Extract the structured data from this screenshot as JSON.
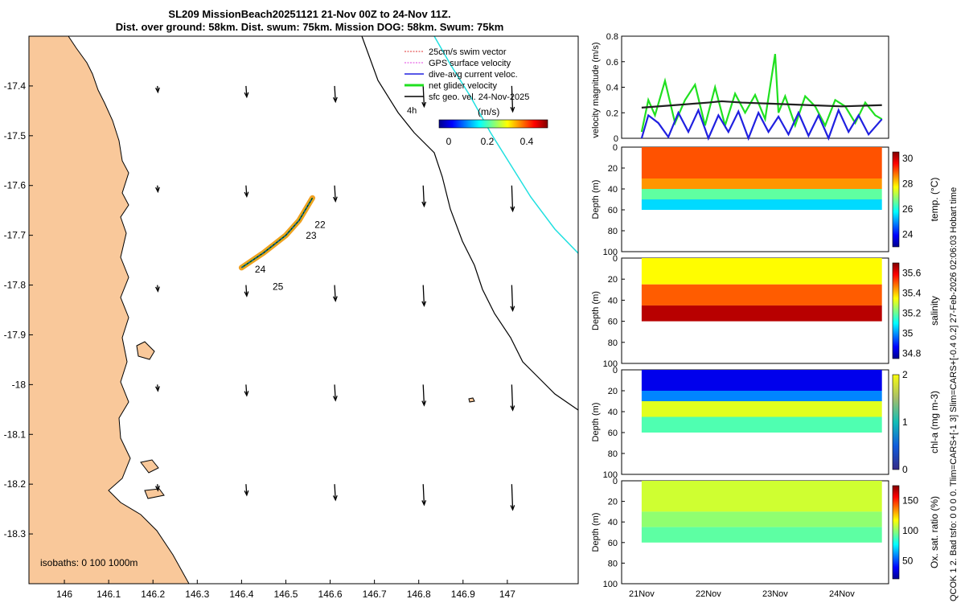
{
  "title": {
    "line1": "SL209 MissionBeach20251121 21-Nov 00Z to 24-Nov 11Z.",
    "line2": "Dist. over ground: 58km. Dist. swum: 75km. Mission DOG: 58km. Swum: 75km"
  },
  "side_note_right": "QCOK 1  2. Bad tsfo: 0  0  0  0. Tlim=CARS+[-1 3] Slim=CARS+[-0.4 0.2] 27-Feb-2026 02:06:03 Hobart time",
  "colors": {
    "land": "#f9c89a",
    "track": "#000000",
    "swim": "#e03030",
    "gps": "#e040e0",
    "current": "#2020e0",
    "glider": "#20e020",
    "contour": "#20e0e0"
  },
  "map": {
    "type": "map",
    "xlim": [
      145.92,
      147.16
    ],
    "ylim": [
      -18.4,
      -17.3
    ],
    "xticks": [
      "146",
      "146.1",
      "146.2",
      "146.3",
      "146.4",
      "146.5",
      "146.6",
      "146.7",
      "146.8",
      "146.9",
      "147"
    ],
    "yticks": [
      "-17.4",
      "-17.5",
      "-17.6",
      "-17.7",
      "-17.8",
      "-17.9",
      "-18",
      "-18.1",
      "-18.2",
      "-18.3"
    ],
    "isobaths_label": "isobaths: 0   100  1000m",
    "legend": [
      "25cm/s swim vector",
      "GPS surface velocity",
      "dive-avg current veloc.",
      "net glider velocity",
      "sfc geo. vel. 24-Nov-2025"
    ],
    "colorbar": {
      "label": "(m/s)",
      "ticks": [
        "0",
        "0.2",
        "0.4"
      ],
      "range": [
        0,
        0.5
      ]
    },
    "timestep_label": "4h",
    "day_labels": [
      {
        "text": "22",
        "lon": 146.565,
        "lat": -17.685
      },
      {
        "text": "23",
        "lon": 146.545,
        "lat": -17.707
      },
      {
        "text": "24",
        "lon": 146.43,
        "lat": -17.775
      },
      {
        "text": "25",
        "lon": 146.47,
        "lat": -17.81
      }
    ],
    "vectors_grid": {
      "lon": [
        146.21,
        146.41,
        146.61,
        146.81,
        147.01
      ],
      "lat": [
        -17.4,
        -17.6,
        -17.8,
        -18.0,
        -18.2
      ]
    }
  },
  "chart_data": [
    {
      "type": "line",
      "name": "velocity",
      "ylabel": "velocity magnitude (m/s)",
      "ylim": [
        0,
        0.8
      ],
      "yticks": [
        "0",
        "0.2",
        "0.4",
        "0.6",
        "0.8"
      ],
      "xlim": [
        20.7,
        24.7
      ],
      "xticks": [
        "21Nov",
        "22Nov",
        "23Nov",
        "24Nov"
      ],
      "series": [
        {
          "color": "#20e020",
          "x": [
            21.0,
            21.1,
            21.2,
            21.35,
            21.5,
            21.65,
            21.8,
            21.95,
            22.1,
            22.25,
            22.4,
            22.55,
            22.7,
            22.85,
            23.0,
            23.05,
            23.15,
            23.3,
            23.45,
            23.6,
            23.75,
            23.9,
            24.05,
            24.2,
            24.35,
            24.5,
            24.6
          ],
          "y": [
            0.05,
            0.3,
            0.18,
            0.45,
            0.12,
            0.3,
            0.42,
            0.1,
            0.4,
            0.1,
            0.35,
            0.2,
            0.34,
            0.15,
            0.66,
            0.2,
            0.33,
            0.1,
            0.33,
            0.25,
            0.1,
            0.3,
            0.25,
            0.12,
            0.28,
            0.18,
            0.15
          ]
        },
        {
          "color": "#2020e0",
          "x": [
            21.0,
            21.1,
            21.25,
            21.4,
            21.55,
            21.7,
            21.85,
            22.0,
            22.15,
            22.3,
            22.45,
            22.6,
            22.75,
            22.9,
            23.05,
            23.2,
            23.35,
            23.5,
            23.65,
            23.8,
            23.95,
            24.1,
            24.25,
            24.4,
            24.6
          ],
          "y": [
            0.0,
            0.18,
            0.12,
            0.01,
            0.2,
            0.05,
            0.22,
            0.0,
            0.18,
            0.05,
            0.21,
            0.0,
            0.2,
            0.05,
            0.17,
            0.03,
            0.2,
            0.02,
            0.18,
            0.0,
            0.22,
            0.05,
            0.18,
            0.03,
            0.15
          ]
        },
        {
          "color": "#202020",
          "x": [
            21.0,
            21.5,
            22.0,
            22.2,
            22.5,
            23.0,
            23.5,
            24.0,
            24.6
          ],
          "y": [
            0.24,
            0.26,
            0.28,
            0.29,
            0.28,
            0.27,
            0.26,
            0.25,
            0.26
          ]
        }
      ]
    },
    {
      "type": "heatmap",
      "name": "temperature",
      "ylabel": "Depth (m)",
      "clabel": "temp. (°C)",
      "ylim": [
        0,
        100
      ],
      "yticks": [
        "0",
        "20",
        "40",
        "60",
        "80",
        "100"
      ],
      "cticks": [
        "24",
        "26",
        "28",
        "30"
      ],
      "crange": [
        23,
        30.5
      ],
      "layers": [
        {
          "from": 0,
          "to": 30,
          "value": 29
        },
        {
          "from": 30,
          "to": 40,
          "value": 28.5
        },
        {
          "from": 40,
          "to": 50,
          "value": 26.5
        },
        {
          "from": 50,
          "to": 60,
          "value": 25.5
        }
      ]
    },
    {
      "type": "heatmap",
      "name": "salinity",
      "ylabel": "Depth (m)",
      "clabel": "salinity",
      "ylim": [
        0,
        100
      ],
      "yticks": [
        "0",
        "20",
        "40",
        "60",
        "80",
        "100"
      ],
      "cticks": [
        "34.8",
        "35",
        "35.2",
        "35.4",
        "35.6"
      ],
      "crange": [
        34.75,
        35.7
      ],
      "layers": [
        {
          "from": 0,
          "to": 25,
          "value": 35.35
        },
        {
          "from": 25,
          "to": 45,
          "value": 35.5
        },
        {
          "from": 45,
          "to": 60,
          "value": 35.65
        }
      ]
    },
    {
      "type": "heatmap",
      "name": "chlorophyll",
      "ylabel": "Depth (m)",
      "clabel": "chl-a (mg m-3)",
      "ylim": [
        0,
        100
      ],
      "yticks": [
        "0",
        "20",
        "40",
        "60",
        "80",
        "100"
      ],
      "cticks": [
        "0",
        "1",
        "2"
      ],
      "crange": [
        0,
        2
      ],
      "layers": [
        {
          "from": 0,
          "to": 20,
          "value": 0.2
        },
        {
          "from": 20,
          "to": 30,
          "value": 0.5
        },
        {
          "from": 30,
          "to": 45,
          "value": 1.2
        },
        {
          "from": 45,
          "to": 60,
          "value": 0.9
        }
      ]
    },
    {
      "type": "heatmap",
      "name": "oxygen",
      "ylabel": "Depth (m)",
      "clabel": "Ox. sat. ratio (%)",
      "ylim": [
        0,
        100
      ],
      "yticks": [
        "0",
        "20",
        "40",
        "60",
        "80",
        "100"
      ],
      "cticks": [
        "50",
        "100",
        "150"
      ],
      "crange": [
        20,
        175
      ],
      "layers": [
        {
          "from": 0,
          "to": 30,
          "value": 110
        },
        {
          "from": 30,
          "to": 45,
          "value": 100
        },
        {
          "from": 45,
          "to": 60,
          "value": 92
        }
      ]
    }
  ]
}
